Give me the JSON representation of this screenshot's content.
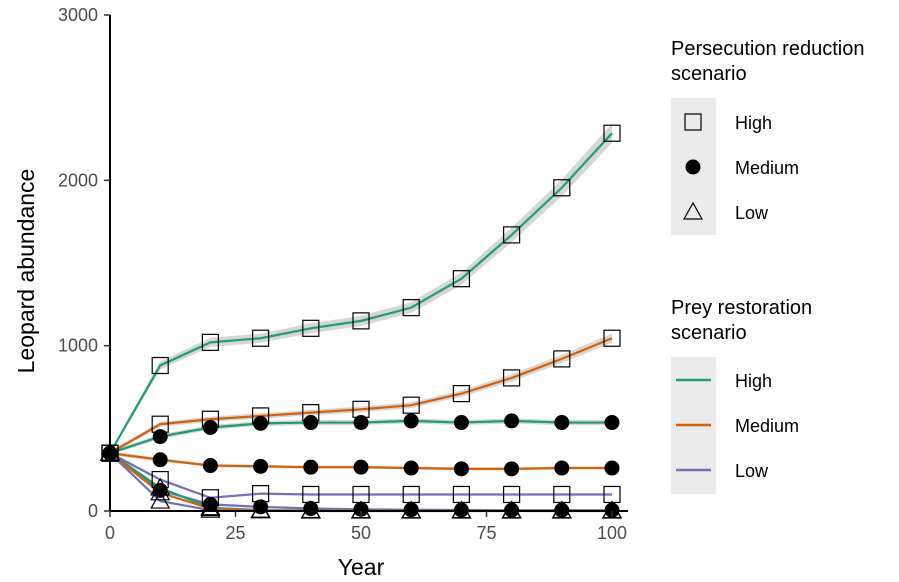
{
  "chart_data": {
    "type": "line",
    "xlabel": "Year",
    "ylabel": "Leopard abundance",
    "xlim": [
      0,
      100
    ],
    "ylim": [
      0,
      3000
    ],
    "x_ticks": [
      0,
      25,
      50,
      75,
      100
    ],
    "y_ticks": [
      0,
      1000,
      2000,
      3000
    ],
    "x_tick_labels": [
      "0",
      "25",
      "50",
      "75",
      "100"
    ],
    "y_tick_labels": [
      "0",
      "1000",
      "2000",
      "3000"
    ],
    "grid": false,
    "legend_placement": "right",
    "x": [
      0,
      10,
      20,
      30,
      40,
      50,
      60,
      70,
      80,
      90,
      100
    ],
    "series": [
      {
        "prey": "High",
        "persecution": "High",
        "color": "#1b9e77",
        "marker": "square",
        "values": [
          350,
          880,
          1020,
          1045,
          1105,
          1150,
          1230,
          1405,
          1670,
          1955,
          2285
        ]
      },
      {
        "prey": "Medium",
        "persecution": "High",
        "color": "#d95f02",
        "marker": "square",
        "values": [
          350,
          525,
          555,
          575,
          595,
          615,
          640,
          710,
          805,
          920,
          1045
        ]
      },
      {
        "prey": "Low",
        "persecution": "High",
        "color": "#7570b3",
        "marker": "square",
        "values": [
          350,
          190,
          80,
          105,
          100,
          100,
          100,
          100,
          100,
          100,
          100
        ]
      },
      {
        "prey": "High",
        "persecution": "Medium",
        "color": "#1b9e77",
        "marker": "circle",
        "values": [
          350,
          450,
          505,
          530,
          535,
          535,
          545,
          535,
          545,
          535,
          535
        ]
      },
      {
        "prey": "Medium",
        "persecution": "Medium",
        "color": "#d95f02",
        "marker": "circle",
        "values": [
          350,
          310,
          275,
          270,
          265,
          265,
          260,
          255,
          255,
          260,
          260
        ]
      },
      {
        "prey": "Low",
        "persecution": "Medium",
        "color": "#7570b3",
        "marker": "circle",
        "values": [
          350,
          125,
          40,
          25,
          15,
          10,
          8,
          6,
          5,
          5,
          5
        ]
      },
      {
        "prey": "High",
        "persecution": "Low",
        "color": "#1b9e77",
        "marker": "triangle",
        "values": [
          350,
          140,
          20,
          5,
          3,
          2,
          2,
          2,
          2,
          2,
          2
        ]
      },
      {
        "prey": "Medium",
        "persecution": "Low",
        "color": "#d95f02",
        "marker": "triangle",
        "values": [
          350,
          110,
          15,
          4,
          2,
          1,
          1,
          1,
          1,
          1,
          1
        ]
      },
      {
        "prey": "Low",
        "persecution": "Low",
        "color": "#7570b3",
        "marker": "triangle",
        "values": [
          350,
          60,
          5,
          1,
          0,
          0,
          0,
          0,
          0,
          0,
          0
        ]
      }
    ],
    "legends": {
      "persecution": {
        "title_line1": "Persecution reduction",
        "title_line2": "scenario",
        "entries": [
          {
            "label": "High",
            "marker": "square"
          },
          {
            "label": "Medium",
            "marker": "circle"
          },
          {
            "label": "Low",
            "marker": "triangle"
          }
        ]
      },
      "prey": {
        "title_line1": "Prey restoration",
        "title_line2": "scenario",
        "entries": [
          {
            "label": "High",
            "color": "#1b9e77"
          },
          {
            "label": "Medium",
            "color": "#d95f02"
          },
          {
            "label": "Low",
            "color": "#7570b3"
          }
        ]
      }
    }
  }
}
